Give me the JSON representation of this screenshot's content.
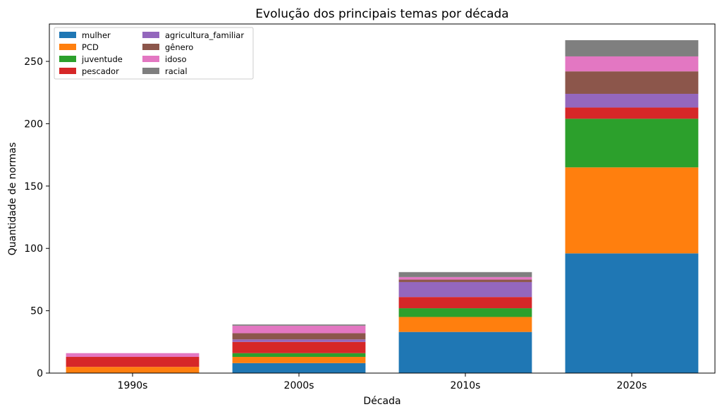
{
  "chart_data": {
    "type": "bar",
    "stacked": true,
    "title": "Evolução dos principais temas por década",
    "xlabel": "Década",
    "ylabel": "Quantidade de normas",
    "categories": [
      "1990s",
      "2000s",
      "2010s",
      "2020s"
    ],
    "ylim": [
      0,
      280
    ],
    "yticks": [
      0,
      50,
      100,
      150,
      200,
      250
    ],
    "grid": false,
    "legend_position": "top-left",
    "series": [
      {
        "name": "mulher",
        "color": "#1f77b4",
        "values": [
          0,
          8,
          33,
          96
        ]
      },
      {
        "name": "PCD",
        "color": "#ff7f0e",
        "values": [
          5,
          5,
          12,
          69
        ]
      },
      {
        "name": "juventude",
        "color": "#2ca02c",
        "values": [
          0,
          3,
          7,
          39
        ]
      },
      {
        "name": "pescador",
        "color": "#d62728",
        "values": [
          8,
          9,
          9,
          9
        ]
      },
      {
        "name": "agricultura_familiar",
        "color": "#9467bd",
        "values": [
          0,
          2,
          12,
          11
        ]
      },
      {
        "name": "gênero",
        "color": "#8c564b",
        "values": [
          0,
          5,
          2,
          18
        ]
      },
      {
        "name": "idoso",
        "color": "#e377c2",
        "values": [
          3,
          6,
          2,
          12
        ]
      },
      {
        "name": "racial",
        "color": "#7f7f7f",
        "values": [
          0,
          1,
          4,
          13
        ]
      }
    ]
  }
}
